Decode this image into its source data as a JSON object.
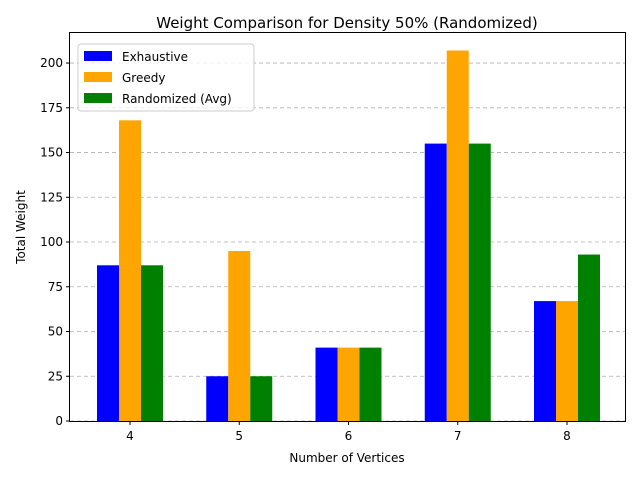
{
  "chart_data": {
    "type": "bar",
    "title": "Weight Comparison for Density 50% (Randomized)",
    "xlabel": "Number of Vertices",
    "ylabel": "Total Weight",
    "categories": [
      "4",
      "5",
      "6",
      "7",
      "8"
    ],
    "series": [
      {
        "name": "Exhaustive",
        "color": "#0000ff",
        "values": [
          87,
          25,
          41,
          155,
          67
        ]
      },
      {
        "name": "Greedy",
        "color": "#ffa500",
        "values": [
          168,
          95,
          41,
          207,
          67
        ]
      },
      {
        "name": "Randomized (Avg)",
        "color": "#008000",
        "values": [
          87,
          25,
          41,
          155,
          93
        ]
      }
    ],
    "ylim": [
      0,
      217.35
    ],
    "yticks": [
      0,
      25,
      50,
      75,
      100,
      125,
      150,
      175,
      200
    ],
    "grid": "y",
    "legend_position": "top-left"
  }
}
